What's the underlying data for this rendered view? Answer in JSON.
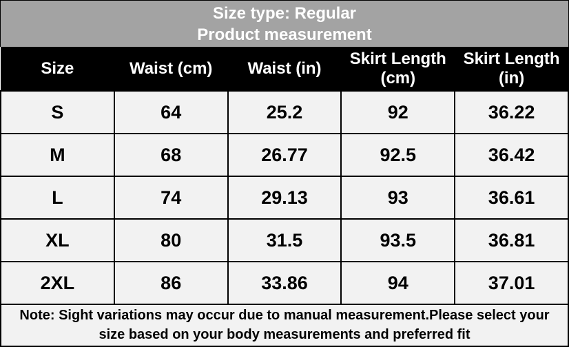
{
  "header": {
    "title": "Size type: Regular",
    "subtitle": "Product measurement"
  },
  "table": {
    "columns": [
      "Size",
      "Waist (cm)",
      "Waist (in)",
      "Skirt Length (cm)",
      "Skirt Length (in)"
    ],
    "rows": [
      [
        "S",
        "64",
        "25.2",
        "92",
        "36.22"
      ],
      [
        "M",
        "68",
        "26.77",
        "92.5",
        "36.42"
      ],
      [
        "L",
        "74",
        "29.13",
        "93",
        "36.61"
      ],
      [
        "XL",
        "80",
        "31.5",
        "93.5",
        "36.81"
      ],
      [
        "2XL",
        "86",
        "33.86",
        "94",
        "37.01"
      ]
    ]
  },
  "note": "Note: Sight variations may occur due to manual measurement.Please select your size based on your body measurements and preferred fit"
}
